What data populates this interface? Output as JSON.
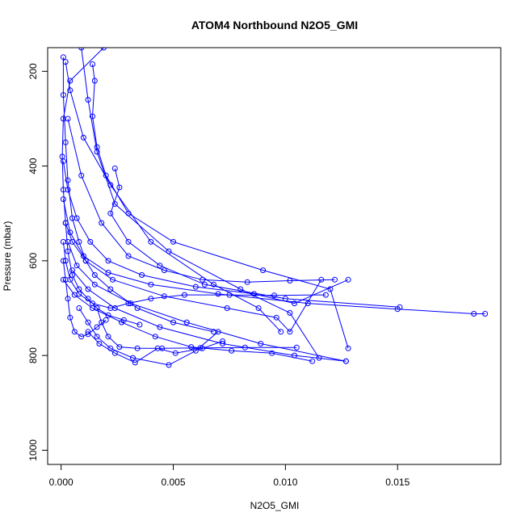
{
  "chart_data": {
    "type": "line",
    "title": "ATOM4 Northbound N2O5_GMI",
    "xlabel": "N2O5_GMI",
    "ylabel": "Pressure (mbar)",
    "xlim": [
      -0.0006,
      0.0196
    ],
    "ylim": [
      1030,
      150
    ],
    "y_reversed": true,
    "xticks": [
      0.0,
      0.005,
      0.01,
      0.015
    ],
    "xtick_labels": [
      "0.000",
      "0.005",
      "0.010",
      "0.015"
    ],
    "yticks": [
      200,
      400,
      600,
      800,
      1000
    ],
    "ytick_labels": [
      "200",
      "400",
      "600",
      "800",
      "1000"
    ],
    "marker": "open-circle",
    "color": "#0000ff",
    "grid": false,
    "legend": "none",
    "series": [
      {
        "x": [
          0.0019,
          0.0004,
          0.0001,
          5e-05,
          0.0001,
          0.0002,
          0.0003,
          0.0005,
          0.0008,
          0.0012,
          0.0016,
          0.0021,
          0.0028,
          0.0035
        ],
        "y": [
          150,
          220,
          300,
          380,
          450,
          520,
          580,
          630,
          660,
          680,
          700,
          715,
          725,
          735
        ]
      },
      {
        "x": [
          0.0001,
          0.0001,
          0.0002,
          0.0003,
          0.0005,
          0.0008,
          0.0011,
          0.0015,
          0.0022,
          0.0034,
          0.005,
          0.0068
        ],
        "y": [
          170,
          250,
          350,
          430,
          510,
          560,
          600,
          630,
          660,
          700,
          730,
          750
        ]
      },
      {
        "x": [
          0.0002,
          0.0004,
          0.001,
          0.0022,
          0.004,
          0.0068,
          0.0088,
          0.0098
        ],
        "y": [
          180,
          240,
          340,
          440,
          560,
          650,
          700,
          750
        ]
      },
      {
        "x": [
          0.0009,
          0.0012,
          0.0016,
          0.0024,
          0.0048,
          0.008,
          0.0102,
          0.0115
        ],
        "y": [
          150,
          260,
          370,
          480,
          580,
          660,
          710,
          805
        ]
      },
      {
        "x": [
          0.0014,
          0.0015,
          0.0014,
          0.0016,
          0.002,
          0.003,
          0.005,
          0.009,
          0.012,
          0.0128
        ],
        "y": [
          185,
          220,
          295,
          360,
          420,
          500,
          560,
          620,
          660,
          785
        ]
      },
      {
        "x": [
          0.0001,
          0.0003,
          0.0007,
          0.0013,
          0.0021,
          0.0036,
          0.006,
          0.0086,
          0.0104,
          0.0128
        ],
        "y": [
          390,
          450,
          510,
          560,
          600,
          630,
          655,
          670,
          690,
          640
        ]
      },
      {
        "x": [
          0.0024,
          0.0026,
          0.0022,
          0.003,
          0.0044,
          0.0064,
          0.01,
          0.0151
        ],
        "y": [
          405,
          445,
          500,
          560,
          610,
          650,
          680,
          698
        ]
      },
      {
        "x": [
          0.0001,
          0.0004,
          0.001,
          0.0021,
          0.004,
          0.007,
          0.011,
          0.015,
          0.0184,
          0.0189
        ],
        "y": [
          470,
          540,
          590,
          625,
          650,
          670,
          690,
          702,
          712,
          712
        ]
      },
      {
        "x": [
          0.0002,
          0.0005,
          0.0011,
          0.0023,
          0.0046,
          0.0074,
          0.0096,
          0.0102,
          0.0116
        ],
        "y": [
          520,
          560,
          600,
          640,
          675,
          700,
          720,
          750,
          640
        ]
      },
      {
        "x": [
          0.0003,
          0.0007,
          0.0015,
          0.0031,
          0.0056,
          0.0089,
          0.0127
        ],
        "y": [
          560,
          610,
          650,
          690,
          730,
          775,
          812
        ]
      },
      {
        "x": [
          0.0005,
          0.0012,
          0.0024,
          0.0044,
          0.0072,
          0.0104,
          0.0127
        ],
        "y": [
          620,
          660,
          700,
          740,
          775,
          800,
          812
        ]
      },
      {
        "x": [
          0.0001,
          0.0006,
          0.0014,
          0.0027,
          0.0042,
          0.0058,
          0.0076,
          0.0094,
          0.0112
        ],
        "y": [
          640,
          672,
          700,
          730,
          760,
          782,
          790,
          795,
          812
        ]
      },
      {
        "x": [
          0.0008,
          0.0012,
          0.0016,
          0.0022,
          0.0032,
          0.0048,
          0.006,
          0.007
        ],
        "y": [
          700,
          730,
          760,
          785,
          805,
          820,
          790,
          750
        ]
      },
      {
        "x": [
          0.0012,
          0.0017,
          0.0024,
          0.0033,
          0.0043,
          0.0051,
          0.0063,
          0.0072
        ],
        "y": [
          750,
          775,
          795,
          815,
          785,
          795,
          785,
          770
        ]
      },
      {
        "x": [
          0.0001,
          0.0002,
          0.0004,
          0.0008,
          0.0014,
          0.0022,
          0.003,
          0.004,
          0.0055,
          0.0075,
          0.0095,
          0.0118
        ],
        "y": [
          560,
          600,
          640,
          670,
          690,
          700,
          690,
          680,
          672,
          672,
          673,
          672
        ]
      },
      {
        "x": [
          0.0003,
          0.0009,
          0.0018,
          0.003,
          0.0046,
          0.0063,
          0.0083,
          0.0102,
          0.0122
        ],
        "y": [
          300,
          420,
          520,
          590,
          620,
          640,
          645,
          642,
          640
        ]
      },
      {
        "x": [
          0.0016,
          0.0018,
          0.0021,
          0.0026,
          0.0034,
          0.0045,
          0.0062,
          0.0082,
          0.0105
        ],
        "y": [
          700,
          730,
          760,
          782,
          785,
          785,
          784,
          783,
          783
        ]
      },
      {
        "x": [
          0.0001,
          0.0002,
          0.0003,
          0.0004,
          0.0006,
          0.0009,
          0.0012,
          0.0016,
          0.002
        ],
        "y": [
          600,
          640,
          680,
          720,
          750,
          760,
          755,
          740,
          725
        ]
      }
    ]
  }
}
